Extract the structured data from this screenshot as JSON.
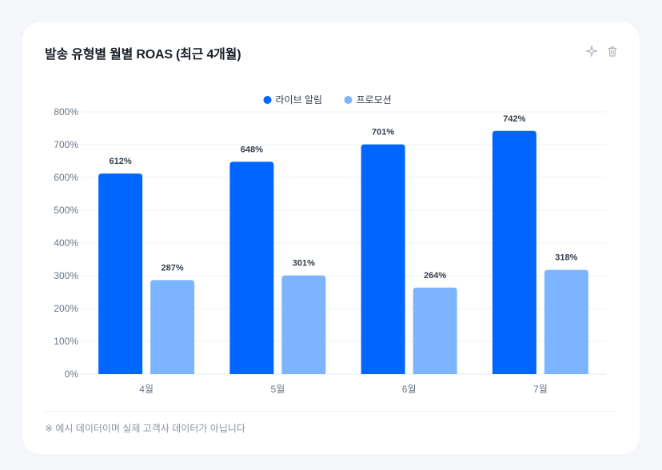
{
  "header": {
    "title": "발송 유형별 월별 ROAS (최근 4개월)",
    "actions": [
      {
        "name": "sparkle-icon",
        "icon": "sparkle"
      },
      {
        "name": "trash-icon",
        "icon": "trash"
      }
    ]
  },
  "footnote": "※ 예시 데이터이며 실제 고객사 데이터가 아닙니다",
  "colors": {
    "series1": "#0066ff",
    "series2": "#7db4ff",
    "grid": "#eef1f4",
    "axis": "#e5e8eb"
  },
  "chart_data": {
    "type": "bar",
    "title": "발송 유형별 월별 ROAS (최근 4개월)",
    "categories": [
      "4월",
      "5월",
      "6월",
      "7월"
    ],
    "series": [
      {
        "name": "라이브 알림",
        "values": [
          612,
          648,
          701,
          742
        ]
      },
      {
        "name": "프로모션",
        "values": [
          287,
          301,
          264,
          318
        ]
      }
    ],
    "data_labels": [
      [
        "612%",
        "648%",
        "701%",
        "742%"
      ],
      [
        "287%",
        "301%",
        "264%",
        "318%"
      ]
    ],
    "y_ticks": [
      "0%",
      "100%",
      "200%",
      "300%",
      "400%",
      "500%",
      "600%",
      "700%",
      "800%"
    ],
    "ylim": [
      0,
      800
    ],
    "unit": "%",
    "xlabel": "",
    "ylabel": "",
    "grid": true,
    "legend": "top-center"
  }
}
